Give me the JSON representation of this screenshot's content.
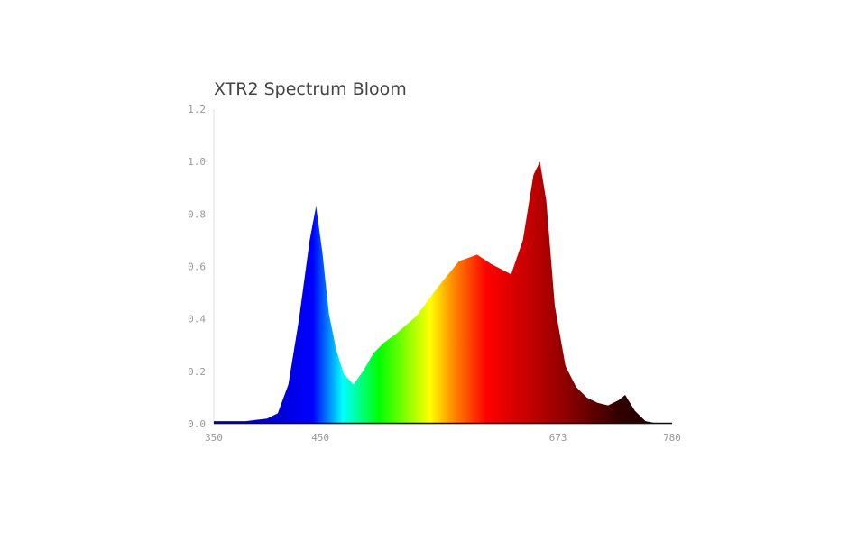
{
  "chart_data": {
    "type": "area",
    "title": "XTR2 Spectrum Bloom",
    "xlabel": "",
    "ylabel": "",
    "xlim": [
      350,
      780
    ],
    "ylim": [
      0,
      1.2
    ],
    "grid": false,
    "xticks": [
      "350",
      "450",
      "673",
      "780"
    ],
    "yticks": [
      "0.0",
      "0.2",
      "0.4",
      "0.6",
      "0.8",
      "1.0",
      "1.2"
    ],
    "x": [
      350,
      360,
      370,
      380,
      390,
      400,
      410,
      420,
      430,
      440,
      446,
      452,
      458,
      465,
      472,
      481,
      490,
      500,
      510,
      520,
      540,
      560,
      580,
      597,
      610,
      629,
      640,
      650,
      656,
      662,
      670,
      680,
      690,
      700,
      710,
      720,
      730,
      736,
      745,
      755,
      765,
      780
    ],
    "y": [
      0.01,
      0.01,
      0.01,
      0.01,
      0.015,
      0.02,
      0.04,
      0.15,
      0.4,
      0.7,
      0.83,
      0.65,
      0.42,
      0.28,
      0.19,
      0.15,
      0.2,
      0.27,
      0.31,
      0.34,
      0.41,
      0.52,
      0.62,
      0.645,
      0.61,
      0.57,
      0.7,
      0.95,
      1.0,
      0.85,
      0.45,
      0.22,
      0.14,
      0.1,
      0.08,
      0.07,
      0.09,
      0.11,
      0.05,
      0.01,
      0.002,
      0
    ],
    "fill_gradient": [
      {
        "nm": 400,
        "color": "#0000c8"
      },
      {
        "nm": 443,
        "color": "#0000ff"
      },
      {
        "nm": 471,
        "color": "#00ffff"
      },
      {
        "nm": 505,
        "color": "#00ff00"
      },
      {
        "nm": 553,
        "color": "#ffff00"
      },
      {
        "nm": 575,
        "color": "#ff8800"
      },
      {
        "nm": 606,
        "color": "#ff0000"
      },
      {
        "nm": 674,
        "color": "#990000"
      },
      {
        "nm": 731,
        "color": "#300000"
      },
      {
        "nm": 780,
        "color": "#200000"
      }
    ]
  }
}
